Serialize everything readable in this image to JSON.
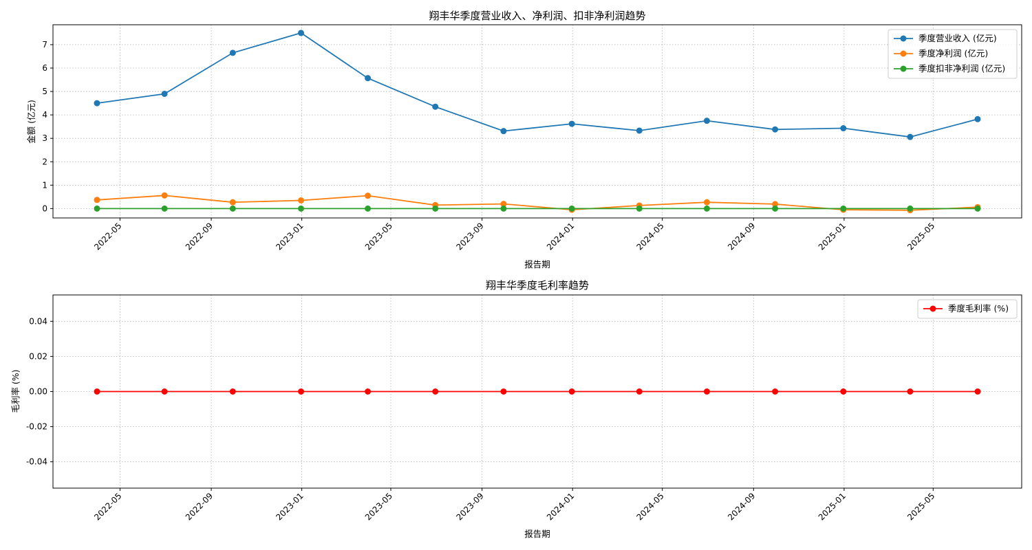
{
  "chart_data": [
    {
      "type": "line",
      "title": "翔丰华季度营业收入、净利润、扣非净利润趋势",
      "xlabel": "报告期",
      "ylabel": "金额 (亿元)",
      "x": [
        "2022-03-31",
        "2022-06-30",
        "2022-09-30",
        "2022-12-31",
        "2023-03-31",
        "2023-06-30",
        "2023-09-30",
        "2023-12-31",
        "2024-03-31",
        "2024-06-30",
        "2024-09-30",
        "2024-12-31",
        "2025-03-31",
        "2025-06-30"
      ],
      "x_ticks": [
        "2022-05",
        "2022-09",
        "2023-01",
        "2023-05",
        "2023-09",
        "2024-01",
        "2024-05",
        "2024-09",
        "2025-01",
        "2025-05"
      ],
      "ylim": [
        -0.4,
        7.85
      ],
      "y_ticks": [
        0,
        1,
        2,
        3,
        4,
        5,
        6,
        7
      ],
      "grid": true,
      "legend": "top-right",
      "series": [
        {
          "name": "季度营业收入 (亿元)",
          "color": "#1f77b4",
          "values": [
            4.5,
            4.9,
            6.65,
            7.5,
            5.57,
            4.35,
            3.31,
            3.62,
            3.33,
            3.75,
            3.38,
            3.43,
            3.06,
            3.82
          ]
        },
        {
          "name": "季度净利润 (亿元)",
          "color": "#ff7f0e",
          "values": [
            0.37,
            0.56,
            0.27,
            0.35,
            0.55,
            0.15,
            0.2,
            -0.05,
            0.13,
            0.27,
            0.19,
            -0.05,
            -0.07,
            0.06
          ]
        },
        {
          "name": "季度扣非净利润 (亿元)",
          "color": "#2ca02c",
          "values": [
            0,
            0,
            0,
            0,
            0,
            0,
            0,
            0,
            0,
            0,
            0,
            0,
            0,
            0
          ]
        }
      ]
    },
    {
      "type": "line",
      "title": "翔丰华季度毛利率趋势",
      "xlabel": "报告期",
      "ylabel": "毛利率 (%)",
      "x": [
        "2022-03-31",
        "2022-06-30",
        "2022-09-30",
        "2022-12-31",
        "2023-03-31",
        "2023-06-30",
        "2023-09-30",
        "2023-12-31",
        "2024-03-31",
        "2024-06-30",
        "2024-09-30",
        "2024-12-31",
        "2025-03-31",
        "2025-06-30"
      ],
      "x_ticks": [
        "2022-05",
        "2022-09",
        "2023-01",
        "2023-05",
        "2023-09",
        "2024-01",
        "2024-05",
        "2024-09",
        "2025-01",
        "2025-05"
      ],
      "ylim": [
        -0.055,
        0.055
      ],
      "y_ticks": [
        -0.04,
        -0.02,
        0.0,
        0.02,
        0.04
      ],
      "y_tick_labels": [
        "-0.04",
        "-0.02",
        "0.00",
        "0.02",
        "0.04"
      ],
      "grid": true,
      "legend": "top-right",
      "series": [
        {
          "name": "季度毛利率 (%)",
          "color": "#ff0000",
          "values": [
            0,
            0,
            0,
            0,
            0,
            0,
            0,
            0,
            0,
            0,
            0,
            0,
            0,
            0
          ]
        }
      ]
    }
  ]
}
